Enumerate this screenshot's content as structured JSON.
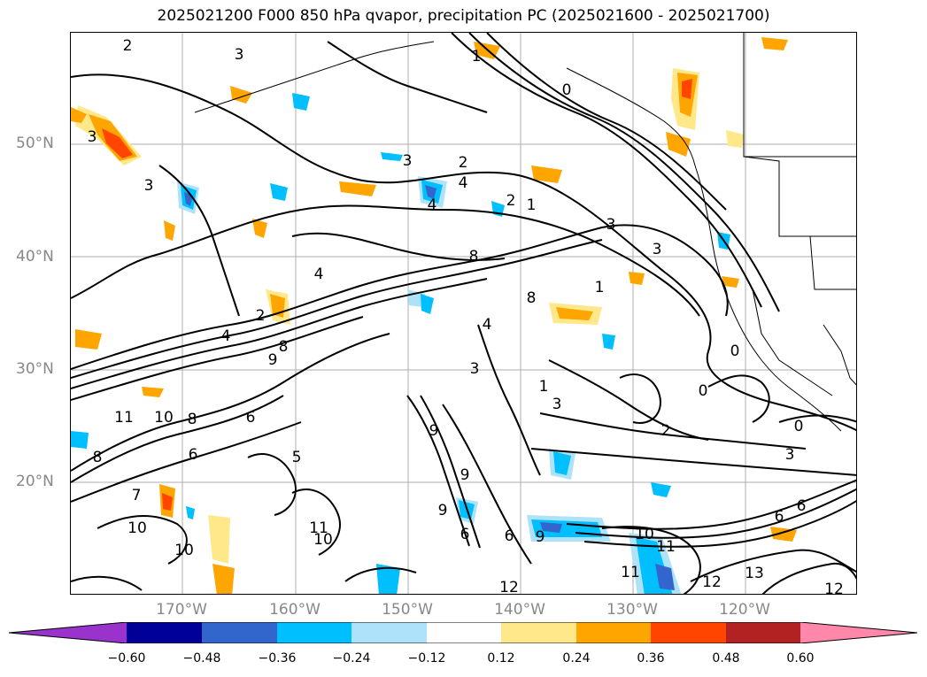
{
  "title": "2025021200 F000 850 hPa qvapor, precipitation PC (2025021600 - 2025021700)",
  "latitude_labels": [
    "50°N",
    "40°N",
    "30°N",
    "20°N"
  ],
  "longitude_labels": [
    "170°W",
    "160°W",
    "150°W",
    "140°W",
    "130°W",
    "120°W"
  ],
  "colorbar": {
    "ticks": [
      "−0.60",
      "−0.48",
      "−0.36",
      "−0.24",
      "−0.12",
      "0.12",
      "0.24",
      "0.36",
      "0.48",
      "0.60"
    ],
    "colors": [
      "#9933cc",
      "#000099",
      "#3366cc",
      "#00bfff",
      "#aee2fa",
      "#ffffff",
      "#ffe88a",
      "#ffa500",
      "#ff4500",
      "#b22222",
      "#ff88aa"
    ]
  },
  "contour_labels": [
    "2",
    "3",
    "3",
    "1",
    "0",
    "3",
    "3",
    "3",
    "2",
    "4",
    "2",
    "1",
    "4",
    "4",
    "8",
    "1",
    "2",
    "3",
    "4",
    "4",
    "8",
    "9",
    "8",
    "3",
    "1",
    "3",
    "2",
    "0",
    "0",
    "11",
    "10",
    "8",
    "6",
    "9",
    "6",
    "5",
    "9",
    "9",
    "8",
    "7",
    "10",
    "10",
    "11",
    "10",
    "6",
    "6",
    "9",
    "12",
    "11",
    "10",
    "11",
    "12",
    "13",
    "12",
    "6",
    "6",
    "3",
    "0"
  ],
  "colors": {
    "contour": "#000000",
    "grid": "#999999",
    "coast": "#000000",
    "neg_light": "#aee2fa",
    "neg_mid": "#00bfff",
    "neg_dark": "#3366cc",
    "pos_light": "#ffe88a",
    "pos_mid": "#ffa500",
    "pos_dark": "#ff4500"
  }
}
